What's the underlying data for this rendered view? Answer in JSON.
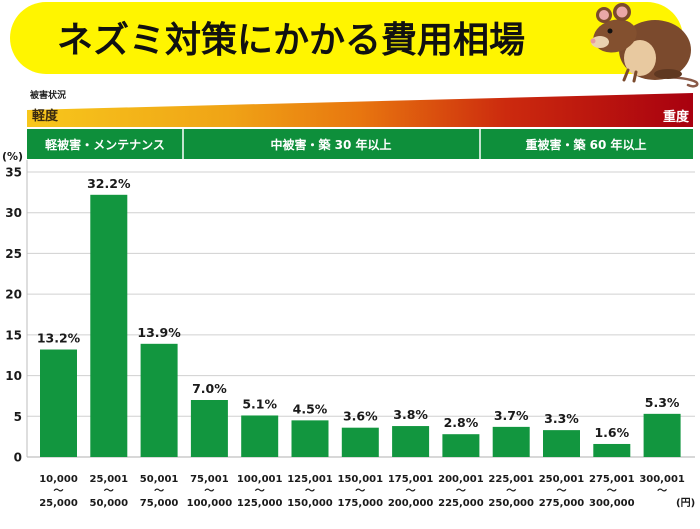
{
  "header": {
    "title": "ネズミ対策にかかる費用相場",
    "mascot_icon": "mouse-icon"
  },
  "severity": {
    "label": "被害状況",
    "low": "軽度",
    "high": "重度"
  },
  "groups": [
    {
      "label": "軽被害・メンテナンス"
    },
    {
      "label": "中被害・築 30 年以上"
    },
    {
      "label": "重被害・築 60 年以上"
    }
  ],
  "colors": {
    "banner": "#fff500",
    "bar": "#12963f",
    "group_header": "#0e8f3b",
    "gradient_start": "#f7c71c",
    "gradient_mid": "#e8760f",
    "gradient_end": "#a8000f",
    "grid": "#d0d0d0"
  },
  "chart_data": {
    "type": "bar",
    "title": "ネズミ対策にかかる費用相場",
    "ylabel": "(%)",
    "xunit": "(円)",
    "ylim": [
      0,
      35
    ],
    "yticks": [
      "0",
      "5",
      "10",
      "15",
      "20",
      "25",
      "30",
      "35"
    ],
    "grid": true,
    "legend": "none",
    "categories": [
      {
        "from": "10,000",
        "sep": "～",
        "to": "25,000"
      },
      {
        "from": "25,001",
        "sep": "～",
        "to": "50,000"
      },
      {
        "from": "50,001",
        "sep": "～",
        "to": "75,000"
      },
      {
        "from": "75,001",
        "sep": "～",
        "to": "100,000"
      },
      {
        "from": "100,001",
        "sep": "～",
        "to": "125,000"
      },
      {
        "from": "125,001",
        "sep": "～",
        "to": "150,000"
      },
      {
        "from": "150,001",
        "sep": "～",
        "to": "175,000"
      },
      {
        "from": "175,001",
        "sep": "～",
        "to": "200,000"
      },
      {
        "from": "200,001",
        "sep": "～",
        "to": "225,000"
      },
      {
        "from": "225,001",
        "sep": "～",
        "to": "250,000"
      },
      {
        "from": "250,001",
        "sep": "～",
        "to": "275,000"
      },
      {
        "from": "275,001",
        "sep": "～",
        "to": "300,000"
      },
      {
        "from": "300,001",
        "sep": "～",
        "to": ""
      }
    ],
    "values": [
      13.2,
      32.2,
      13.9,
      7.0,
      5.1,
      4.5,
      3.6,
      3.8,
      2.8,
      3.7,
      3.3,
      1.6,
      5.3
    ],
    "value_labels": [
      "13.2%",
      "32.2%",
      "13.9%",
      "7.0%",
      "5.1%",
      "4.5%",
      "3.6%",
      "3.8%",
      "2.8%",
      "3.7%",
      "3.3%",
      "1.6%",
      "5.3%"
    ],
    "groups": [
      {
        "label": "軽被害・メンテナンス",
        "categories": 3
      },
      {
        "label": "中被害・築 30 年以上",
        "categories": 6
      },
      {
        "label": "重被害・築 60 年以上",
        "categories": 4
      }
    ]
  }
}
